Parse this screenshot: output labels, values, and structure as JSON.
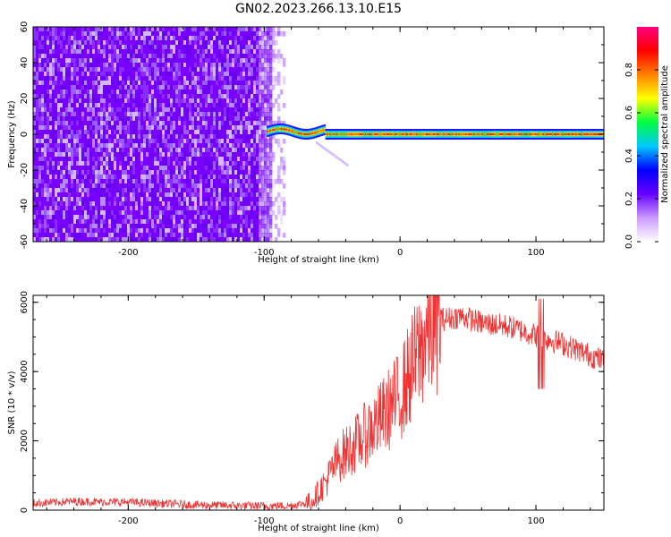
{
  "title": "GN02.2023.266.13.10.E15",
  "chart_data": [
    {
      "type": "heatmap",
      "name": "spectrogram",
      "xlabel": "Height of straight line (km)",
      "ylabel": "Frequency (Hz)",
      "xlim": [
        -270,
        150
      ],
      "ylim": [
        -60,
        60
      ],
      "xticks": [
        -200,
        -100,
        0,
        100
      ],
      "yticks": [
        -60,
        -40,
        -20,
        0,
        20,
        40,
        60
      ],
      "xtick_labels": [
        "-200",
        "-100",
        "0",
        "100"
      ],
      "ytick_labels": [
        "-60",
        "-40",
        "-20",
        "0",
        "20",
        "40",
        "60"
      ],
      "noise_region_x": [
        -270,
        -95
      ],
      "signal_band_x": [
        -98,
        150
      ],
      "signal_center_hz": 0,
      "colorbar": {
        "label": "Normalized spectral amplitude",
        "range": [
          0,
          1
        ],
        "ticks": [
          0.0,
          0.2,
          0.4,
          0.6,
          0.8
        ],
        "tick_labels": [
          "0.0",
          "0.2",
          "0.4",
          "0.6",
          "0.8"
        ],
        "colors": [
          "#ffffff",
          "#cc99ff",
          "#6600ff",
          "#0000ff",
          "#00c8ff",
          "#00ff40",
          "#ffff00",
          "#ff8000",
          "#ff0000",
          "#ff0080"
        ]
      }
    },
    {
      "type": "line",
      "name": "snr",
      "xlabel": "Height of straight line (km)",
      "ylabel": "SNR (10 * v/v)",
      "xlim": [
        -270,
        150
      ],
      "ylim": [
        0,
        6200
      ],
      "xticks": [
        -200,
        -100,
        0,
        100
      ],
      "yticks": [
        0,
        2000,
        4000,
        6000
      ],
      "xtick_labels": [
        "-200",
        "-100",
        "0",
        "100"
      ],
      "ytick_labels": [
        "0",
        "2000",
        "4000",
        "6000"
      ],
      "color": "#ee3333",
      "envelope": {
        "x": [
          -270,
          -240,
          -200,
          -150,
          -100,
          -80,
          -65,
          -55,
          -45,
          -30,
          -15,
          0,
          10,
          20,
          30,
          45,
          60,
          80,
          100,
          120,
          150
        ],
        "y": [
          200,
          250,
          230,
          150,
          120,
          130,
          250,
          800,
          1500,
          2000,
          2600,
          3300,
          4200,
          5100,
          5500,
          5600,
          5400,
          5300,
          5050,
          4800,
          4300
        ]
      }
    }
  ]
}
